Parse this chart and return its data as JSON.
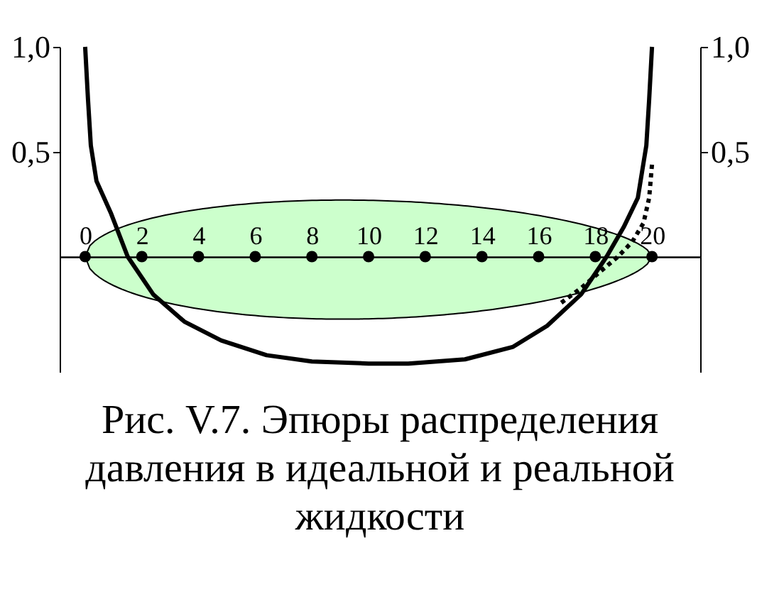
{
  "chart_data": {
    "type": "line",
    "title": "Рис. V.7. Эпюры распределения давления в идеальной и реальной жидкости",
    "xlim": [
      -0.9,
      21.7
    ],
    "xticks": [
      0,
      2,
      4,
      6,
      8,
      10,
      12,
      14,
      16,
      18,
      20
    ],
    "ylim": [
      -0.55,
      1.0
    ],
    "yticks": [
      {
        "value": 0.5,
        "label": "0,5"
      },
      {
        "value": 1.0,
        "label": "1,0"
      }
    ],
    "y2lim": [
      -0.55,
      1.0
    ],
    "y2ticks": [
      {
        "value": 0.5,
        "label": "0,5"
      },
      {
        "value": 1.0,
        "label": "1,0"
      }
    ],
    "series": [
      {
        "type": "line",
        "color": "#000000",
        "line_style": "solid",
        "x": [
          0,
          0.1,
          0.2,
          0.4,
          0.9,
          1.5,
          2.4,
          3.5,
          4.8,
          6.4,
          8.0,
          10.0,
          11.4,
          13.4,
          15.1,
          16.3,
          17.5,
          18.4,
          19.0,
          19.5,
          19.8,
          19.9,
          20
        ],
        "values": [
          1.0,
          0.75,
          0.53,
          0.36,
          0.21,
          0,
          -0.18,
          -0.31,
          -0.4,
          -0.47,
          -0.5,
          -0.51,
          -0.51,
          -0.49,
          -0.43,
          -0.33,
          -0.18,
          0,
          0.14,
          0.28,
          0.53,
          0.75,
          1.0
        ]
      },
      {
        "type": "line",
        "color": "#000000",
        "line_style": "dotted",
        "axis": "y2",
        "x": [
          16.8,
          17.5,
          18.1,
          18.8,
          19.3,
          19.7,
          19.9,
          20
        ],
        "values": [
          -0.22,
          -0.15,
          -0.08,
          0,
          0.07,
          0.16,
          0.28,
          0.44
        ]
      },
      {
        "type": "scatter",
        "color": "#000000",
        "marker": "circle",
        "x": [
          0,
          2,
          4,
          6,
          8,
          10,
          12,
          14,
          16,
          18,
          20
        ],
        "values": [
          0,
          0,
          0,
          0,
          0,
          0,
          0,
          0,
          0,
          0,
          0
        ]
      }
    ]
  }
}
